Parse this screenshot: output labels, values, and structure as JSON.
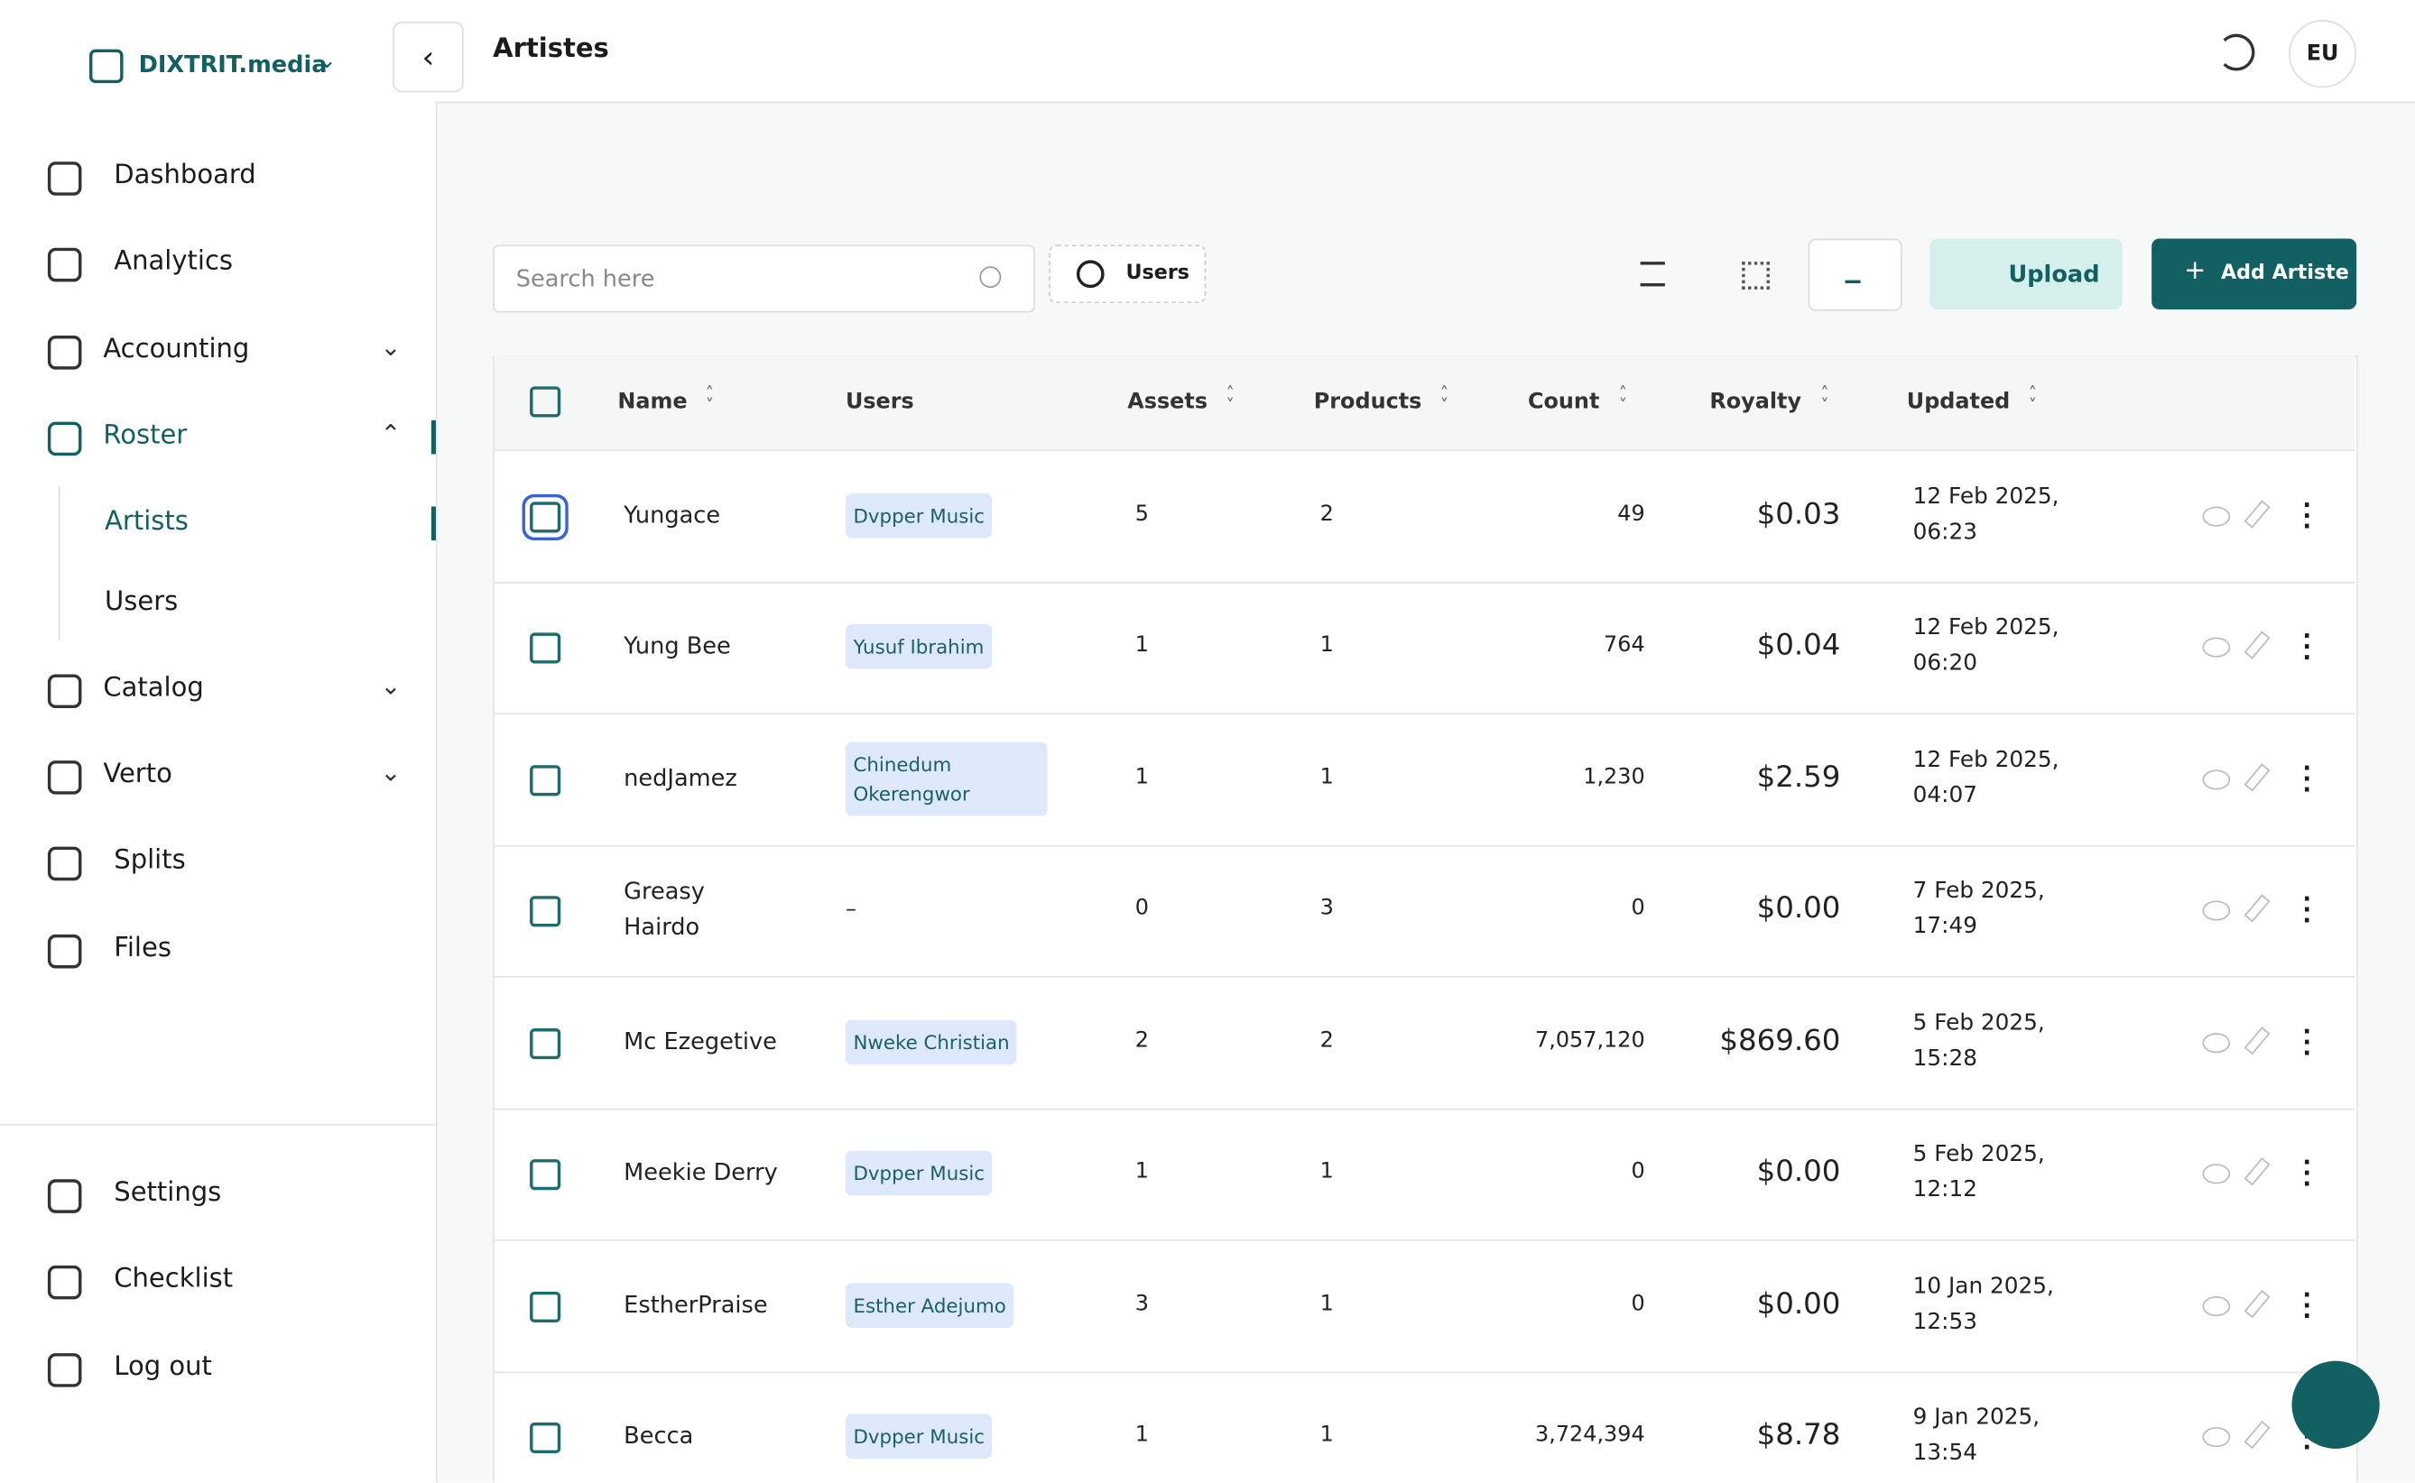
{
  "sidebar": {
    "brand": "DIXTRIT.media",
    "nav": [
      {
        "label": "Dashboard"
      },
      {
        "label": "Analytics"
      },
      {
        "label": "Accounting"
      },
      {
        "label": "Roster"
      },
      {
        "label": "Catalog"
      },
      {
        "label": "Verto"
      },
      {
        "label": "Splits"
      },
      {
        "label": "Files"
      }
    ],
    "roster_sub": [
      "Artists",
      "Users"
    ],
    "bottom": [
      "Settings",
      "Checklist",
      "Log out"
    ]
  },
  "header": {
    "title": "Artistes",
    "avatar": "EU"
  },
  "toolbar": {
    "search_placeholder": "Search here",
    "filter": "Users",
    "upload": "Upload",
    "add": "Add Artiste"
  },
  "table": {
    "columns": [
      "Name",
      "Users",
      "Assets",
      "Products",
      "Count",
      "Royalty",
      "Updated"
    ],
    "rows": [
      [
        "Yungace",
        "Dvpper Music",
        "5",
        "2",
        "49",
        "$0.03",
        "12 Feb 2025, 06:23"
      ],
      [
        "Yung Bee",
        "Yusuf Ibrahim",
        "1",
        "1",
        "764",
        "$0.04",
        "12 Feb 2025, 06:20"
      ],
      [
        "nedJamez",
        "Chinedum Okerengwor",
        "1",
        "1",
        "1,230",
        "$2.59",
        "12 Feb 2025, 04:07"
      ],
      [
        "Greasy Hairdo",
        "–",
        "0",
        "3",
        "0",
        "$0.00",
        "7 Feb 2025, 17:49"
      ],
      [
        "Mc Ezegetive",
        "Nweke Christian",
        "2",
        "2",
        "7,057,120",
        "$869.60",
        "5 Feb 2025, 15:28"
      ],
      [
        "Meekie Derry",
        "Dvpper Music",
        "1",
        "1",
        "0",
        "$0.00",
        "5 Feb 2025, 12:12"
      ],
      [
        "EstherPraise",
        "Esther Adejumo",
        "3",
        "1",
        "0",
        "$0.00",
        "10 Jan 2025, 12:53"
      ],
      [
        "Becca",
        "Dvpper Music",
        "1",
        "1",
        "3,724,394",
        "$8.78",
        "9 Jan 2025, 13:54"
      ]
    ]
  }
}
